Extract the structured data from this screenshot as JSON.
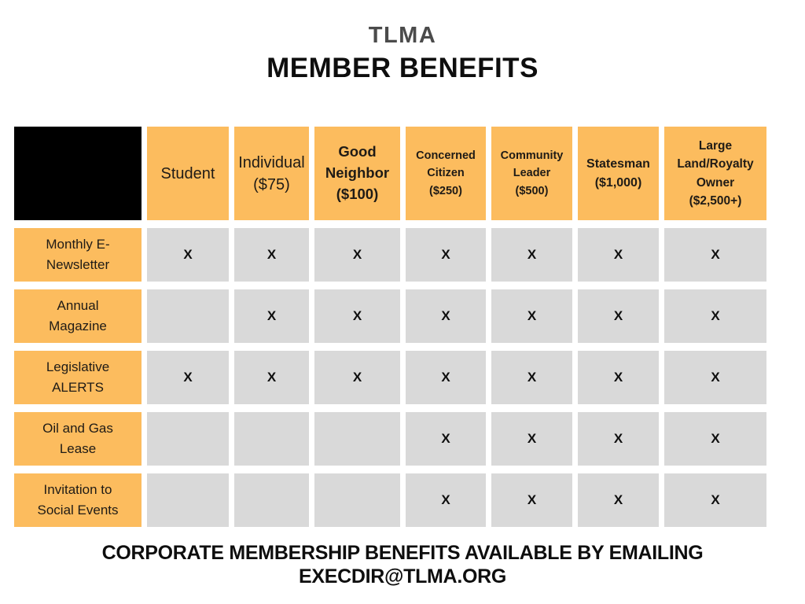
{
  "title": {
    "org": "TLMA",
    "main": "MEMBER BENEFITS"
  },
  "table": {
    "check_mark": "X",
    "columns": [
      {
        "key": "student",
        "label": "Student",
        "bold": false
      },
      {
        "key": "individual",
        "label": "Individual\n($75)",
        "bold": false
      },
      {
        "key": "good-neighbor",
        "label": "Good\nNeighbor\n($100)",
        "bold": true
      },
      {
        "key": "concerned-citizen",
        "label": "Concerned\nCitizen\n($250)",
        "bold": true
      },
      {
        "key": "community-leader",
        "label": "Community\nLeader\n($500)",
        "bold": true
      },
      {
        "key": "statesman",
        "label": "Statesman\n($1,000)",
        "bold": true
      },
      {
        "key": "large-land-royalty-owner",
        "label": "Large\nLand/Royalty\nOwner\n($2,500+)",
        "bold": true
      }
    ],
    "rows": [
      {
        "key": "monthly-e-newsletter",
        "label": "Monthly E-\nNewsletter",
        "cells": [
          "X",
          "X",
          "X",
          "X",
          "X",
          "X",
          "X"
        ]
      },
      {
        "key": "annual-magazine",
        "label": "Annual\nMagazine",
        "cells": [
          "",
          "X",
          "X",
          "X",
          "X",
          "X",
          "X"
        ]
      },
      {
        "key": "legislative-alerts",
        "label": "Legislative\nALERTS",
        "cells": [
          "X",
          "X",
          "X",
          "X",
          "X",
          "X",
          "X"
        ]
      },
      {
        "key": "oil-and-gas-lease",
        "label": "Oil and Gas\nLease",
        "cells": [
          "",
          "",
          "",
          "X",
          "X",
          "X",
          "X"
        ]
      },
      {
        "key": "invitation-to-social-events",
        "label": "Invitation to\nSocial Events",
        "cells": [
          "",
          "",
          "",
          "X",
          "X",
          "X",
          "X"
        ]
      }
    ]
  },
  "footer": {
    "line1": "CORPORATE MEMBERSHIP BENEFITS AVAILABLE BY EMAILING",
    "line2": "EXECDIR@TLMA.ORG"
  },
  "colors": {
    "accent_orange": "#FCBC5E",
    "cell_gray": "#D9D9D9",
    "header_black": "#000000",
    "title_gray": "#4B4B4B",
    "text_black": "#0E0E0E",
    "text_dark": "#1F1B16"
  },
  "chart_data": {
    "type": "table",
    "title": "TLMA MEMBER BENEFITS",
    "columns": [
      "Student",
      "Individual ($75)",
      "Good Neighbor ($100)",
      "Concerned Citizen ($250)",
      "Community Leader ($500)",
      "Statesman ($1,000)",
      "Large Land/Royalty Owner ($2,500+)"
    ],
    "rows": [
      "Monthly E-Newsletter",
      "Annual Magazine",
      "Legislative ALERTS",
      "Oil and Gas Lease",
      "Invitation to Social Events"
    ],
    "matrix": [
      [
        true,
        true,
        true,
        true,
        true,
        true,
        true
      ],
      [
        false,
        true,
        true,
        true,
        true,
        true,
        true
      ],
      [
        true,
        true,
        true,
        true,
        true,
        true,
        true
      ],
      [
        false,
        false,
        false,
        true,
        true,
        true,
        true
      ],
      [
        false,
        false,
        false,
        true,
        true,
        true,
        true
      ]
    ],
    "footnote": "CORPORATE MEMBERSHIP BENEFITS AVAILABLE BY EMAILING EXECDIR@TLMA.ORG"
  }
}
